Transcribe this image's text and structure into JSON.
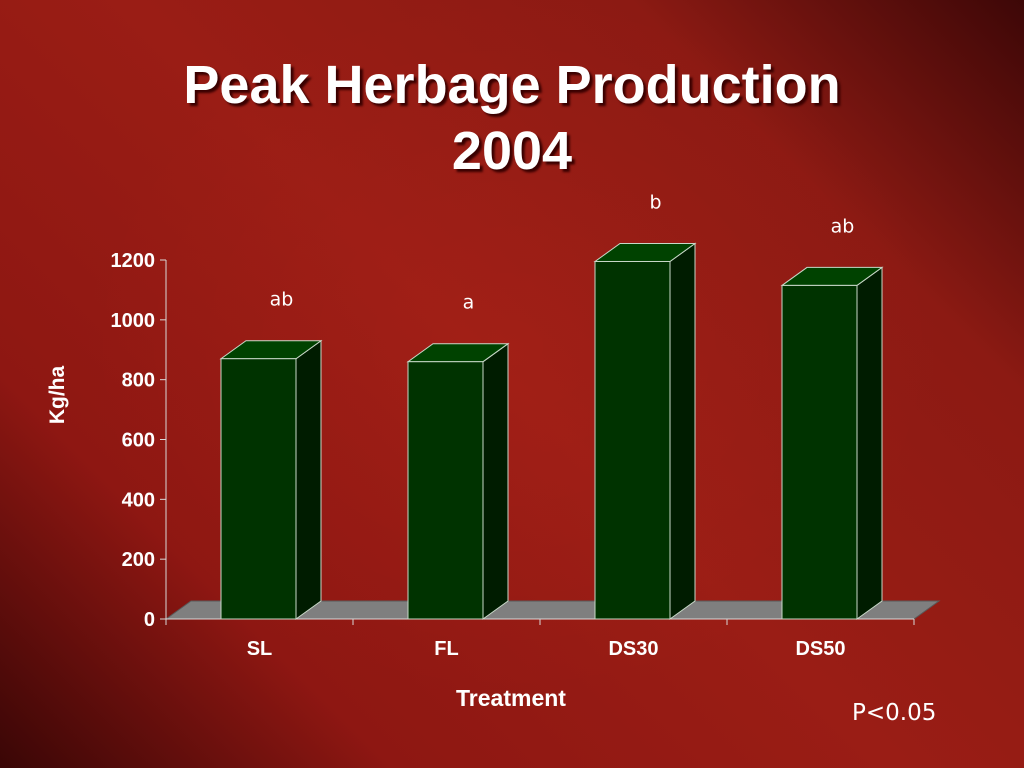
{
  "slide": {
    "title_line1": "Peak Herbage Production",
    "title_line2": "2004",
    "note": "P<0.05"
  },
  "colors": {
    "bar_front": "#003300",
    "bar_side": "#001c00",
    "bar_top": "#004200",
    "bar_edge": "#c8d8c8",
    "floor": "#7f7f7f",
    "text": "#ffffff"
  },
  "chart_data": {
    "type": "bar",
    "style": "3d-column",
    "categories": [
      "SL",
      "FL",
      "DS30",
      "DS50"
    ],
    "values": [
      870,
      860,
      1195,
      1115
    ],
    "significance_letters": [
      "ab",
      "a",
      "b",
      "ab"
    ],
    "xlabel": "Treatment",
    "ylabel": "Kg/ha",
    "ylim": [
      0,
      1200
    ],
    "yticks": [
      0,
      200,
      400,
      600,
      800,
      1000,
      1200
    ],
    "grid": false,
    "legend": "none"
  }
}
